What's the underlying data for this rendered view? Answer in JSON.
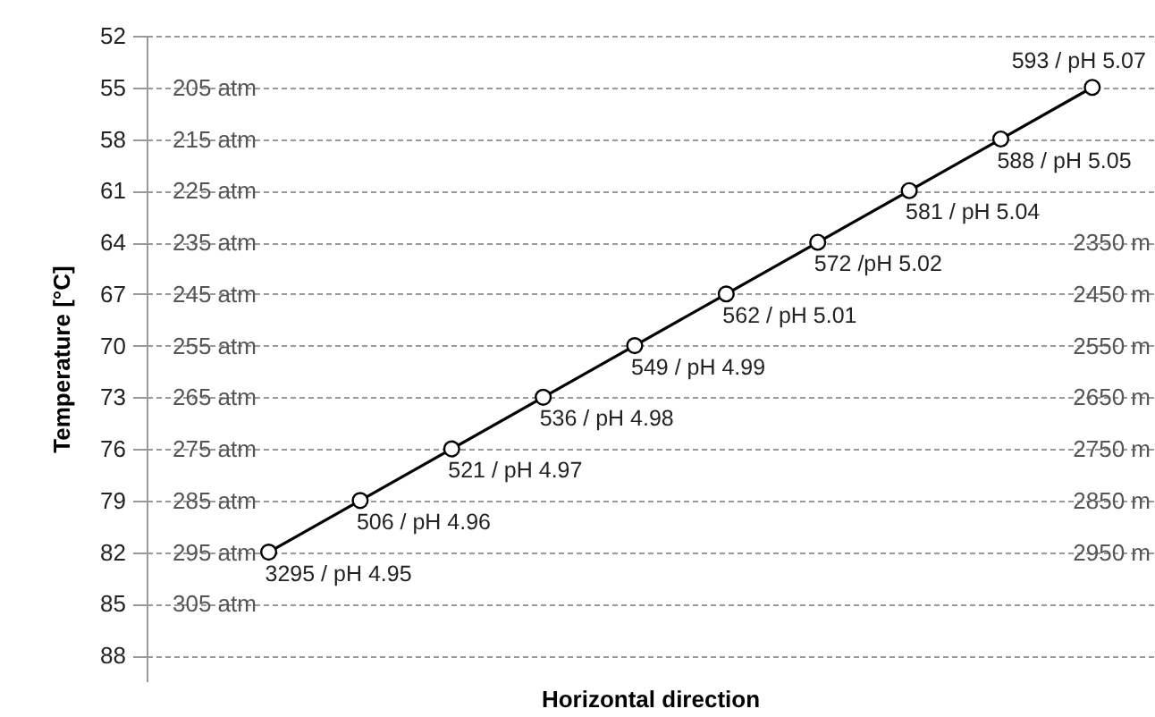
{
  "chart_data": {
    "type": "line",
    "ylabel": "Temperature [°C]",
    "xlabel": "Horizontal direction",
    "categories": [
      null,
      null,
      null,
      null,
      null,
      null,
      null,
      null,
      null,
      null
    ],
    "series": [
      {
        "color": "#000000",
        "values": [
          82,
          79,
          76,
          73,
          70,
          67,
          64,
          61,
          58,
          55
        ]
      }
    ],
    "ylim": [
      89.5,
      52
    ],
    "yticks": [
      52,
      55,
      58,
      61,
      64,
      67,
      70,
      73,
      76,
      79,
      82,
      85,
      88
    ],
    "y2lim": [
      3200,
      1950
    ],
    "y2ticks": [
      {
        "value": 2350,
        "label": "2350 m"
      },
      {
        "value": 2450,
        "label": "2450 m"
      },
      {
        "value": 2550,
        "label": "2550 m"
      },
      {
        "value": 2650,
        "label": "2650 m"
      },
      {
        "value": 2750,
        "label": "2750 m"
      },
      {
        "value": 2850,
        "label": "2850 m"
      },
      {
        "value": 2950,
        "label": "2950 m"
      }
    ],
    "y3lim": [
      320,
      195
    ],
    "y3ticks": [
      {
        "value": 205,
        "label": "205 atm"
      },
      {
        "value": 215,
        "label": "215 atm"
      },
      {
        "value": 225,
        "label": "225 atm"
      },
      {
        "value": 235,
        "label": "235 atm"
      },
      {
        "value": 245,
        "label": "245 atm"
      },
      {
        "value": 255,
        "label": "255 atm"
      },
      {
        "value": 265,
        "label": "265 atm"
      },
      {
        "value": 275,
        "label": "275 atm"
      },
      {
        "value": 285,
        "label": "285 atm"
      },
      {
        "value": 295,
        "label": "295 atm"
      },
      {
        "value": 305,
        "label": "305 atm"
      }
    ],
    "annotations": [
      "3295 / pH 4.95",
      "506 / pH 4.96",
      "521 / pH 4.97",
      "536 / pH 4.98",
      "549 / pH 4.99",
      "562 / pH 5.01",
      "572 /pH 5.02",
      "581 / pH 5.04",
      "588 / pH 5.05",
      "593 / pH 5.07"
    ],
    "grid": "y",
    "marker": "circle",
    "tick_labels": "y"
  }
}
